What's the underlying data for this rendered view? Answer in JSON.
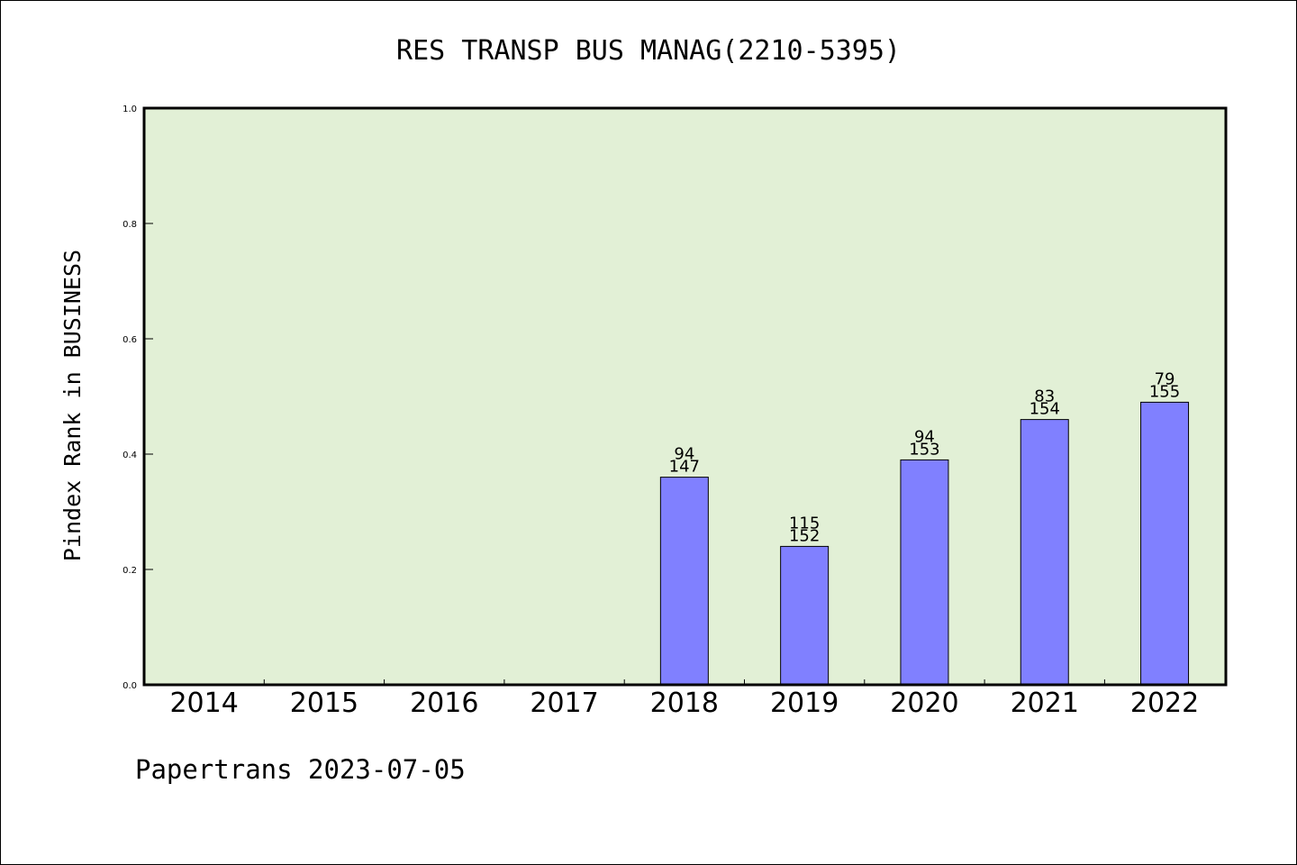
{
  "chart_data": {
    "type": "bar",
    "title": "RES TRANSP BUS MANAG(2210-5395)",
    "ylabel": "Pindex Rank in BUSINESS",
    "xlabel": "",
    "ylim": [
      0,
      1.0
    ],
    "yticks": [
      "0.0",
      "0.2",
      "0.4",
      "0.6",
      "0.8",
      "1.0"
    ],
    "categories": [
      "2014",
      "2015",
      "2016",
      "2017",
      "2018",
      "2019",
      "2020",
      "2021",
      "2022"
    ],
    "values": [
      null,
      null,
      null,
      null,
      0.36,
      0.24,
      0.39,
      0.46,
      0.49
    ],
    "rank_labels": [
      "",
      "",
      "",
      "",
      "94",
      "115",
      "94",
      "83",
      "79"
    ],
    "total_labels": [
      "",
      "",
      "",
      "",
      "147",
      "152",
      "153",
      "154",
      "155"
    ],
    "grid": false,
    "colors": {
      "plot_background": "#e2f0d6",
      "bar_fill": "#8080ff",
      "bar_stroke": "#000000"
    }
  },
  "footer": {
    "credit": "Papertrans 2023-07-05"
  }
}
